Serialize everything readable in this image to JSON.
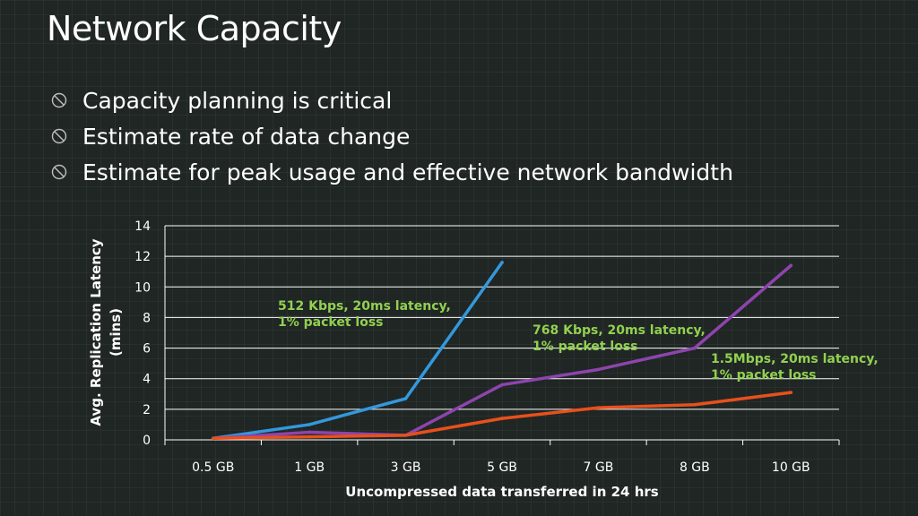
{
  "slide": {
    "title": "Network Capacity",
    "bullets": [
      "Capacity planning is critical",
      "Estimate rate of data change",
      "Estimate for peak usage and effective network bandwidth"
    ],
    "bullet_icon": "no-entry-circle-icon"
  },
  "chart_data": {
    "type": "line",
    "categories": [
      "0.5 GB",
      "1 GB",
      "3 GB",
      "5 GB",
      "7 GB",
      "8 GB",
      "10 GB"
    ],
    "xlabel": "Uncompressed data transferred in 24 hrs",
    "ylabel": "Avg. Replication Latency (mins)",
    "ylabel_lines": [
      "Avg. Replication Latency",
      "(mins)"
    ],
    "ylim": [
      0,
      14
    ],
    "yticks": [
      0,
      2,
      4,
      6,
      8,
      10,
      12,
      14
    ],
    "grid": true,
    "legend": "none",
    "series": [
      {
        "name": "512 Kbps, 20ms latency, 1% packet loss",
        "color": "#3498db",
        "values": [
          0.1,
          1.0,
          2.7,
          11.6,
          null,
          null,
          null
        ]
      },
      {
        "name": "768 Kbps, 20ms latency, 1% packet loss",
        "color": "#8e44ad",
        "values": [
          0.1,
          0.5,
          0.3,
          3.6,
          4.6,
          6.0,
          11.4
        ]
      },
      {
        "name": "1.5Mbps, 20ms latency, 1% packet loss",
        "color": "#e8501c",
        "values": [
          0.1,
          0.2,
          0.3,
          1.4,
          2.1,
          2.3,
          3.1
        ]
      }
    ],
    "annotations": [
      {
        "series": 0,
        "lines": [
          "512 Kbps, 20ms latency,",
          "1% packet loss"
        ]
      },
      {
        "series": 1,
        "lines": [
          "768 Kbps, 20ms latency,",
          "1% packet loss"
        ]
      },
      {
        "series": 2,
        "lines": [
          "1.5Mbps, 20ms latency,",
          "1% packet loss"
        ]
      }
    ]
  }
}
